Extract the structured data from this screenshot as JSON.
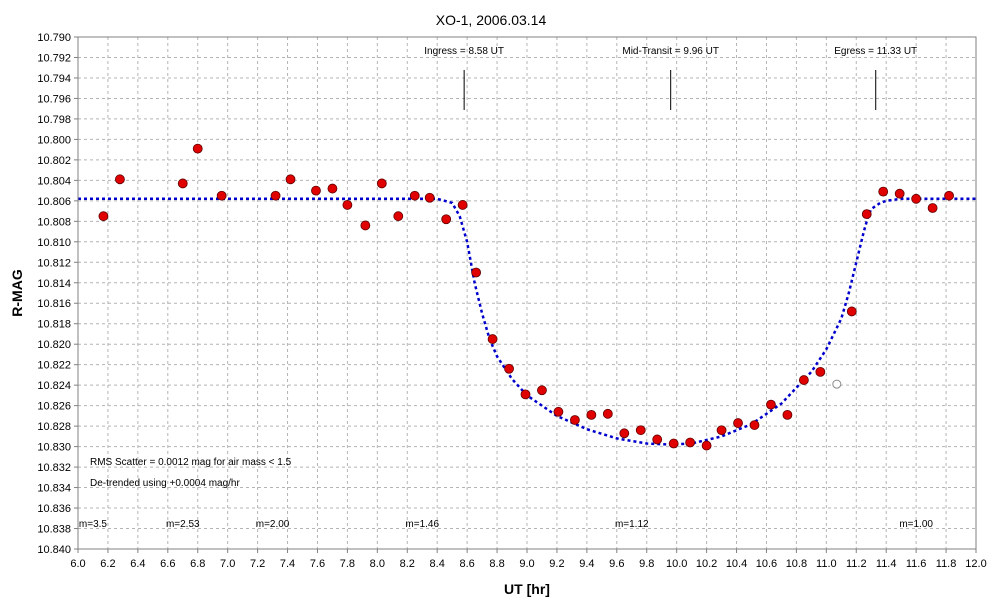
{
  "chart_data": {
    "type": "scatter",
    "title": "XO-1, 2006.03.14",
    "xlabel": "UT [hr]",
    "ylabel": "R-MAG",
    "xlim": [
      6.0,
      12.0
    ],
    "ylim": [
      10.79,
      10.84
    ],
    "y_inverted": true,
    "grid": true,
    "x_ticks": [
      "6.0",
      "6.2",
      "6.4",
      "6.6",
      "6.8",
      "7.0",
      "7.2",
      "7.4",
      "7.6",
      "7.8",
      "8.0",
      "8.2",
      "8.4",
      "8.6",
      "8.8",
      "9.0",
      "9.2",
      "9.4",
      "9.6",
      "9.8",
      "10.0",
      "10.2",
      "10.4",
      "10.6",
      "10.8",
      "11.0",
      "11.2",
      "11.4",
      "11.6",
      "11.8",
      "12.0"
    ],
    "y_ticks": [
      "10.790",
      "10.792",
      "10.794",
      "10.796",
      "10.798",
      "10.800",
      "10.802",
      "10.804",
      "10.806",
      "10.808",
      "10.810",
      "10.812",
      "10.814",
      "10.816",
      "10.818",
      "10.820",
      "10.822",
      "10.824",
      "10.826",
      "10.828",
      "10.830",
      "10.832",
      "10.834",
      "10.836",
      "10.838",
      "10.840"
    ],
    "series": [
      {
        "color": "#e00000",
        "marker": "filled-circle",
        "x": [
          6.17,
          6.28,
          6.7,
          6.8,
          6.96,
          7.32,
          7.42,
          7.59,
          7.7,
          7.8,
          7.92,
          8.03,
          8.14,
          8.25,
          8.35,
          8.46,
          8.57,
          8.66,
          8.77,
          8.88,
          8.99,
          9.1,
          9.21,
          9.32,
          9.43,
          9.54,
          9.65,
          9.76,
          9.87,
          9.98,
          10.09,
          10.2,
          10.3,
          10.41,
          10.52,
          10.63,
          10.74,
          10.85,
          10.96,
          11.17,
          11.27,
          11.38,
          11.49,
          11.6,
          11.71,
          11.82
        ],
        "y": [
          10.8075,
          10.8039,
          10.8043,
          10.8009,
          10.8055,
          10.8055,
          10.8039,
          10.805,
          10.8048,
          10.8064,
          10.8084,
          10.8043,
          10.8075,
          10.8055,
          10.8057,
          10.8078,
          10.8064,
          10.813,
          10.8195,
          10.8224,
          10.8249,
          10.8245,
          10.8266,
          10.8274,
          10.8269,
          10.8268,
          10.8287,
          10.8284,
          10.8293,
          10.8297,
          10.8296,
          10.8299,
          10.8284,
          10.8277,
          10.8279,
          10.8259,
          10.8269,
          10.8235,
          10.8227,
          10.8168,
          10.8073,
          10.8051,
          10.8053,
          10.8058,
          10.8067,
          10.8055
        ]
      },
      {
        "color": "#888888",
        "marker": "open-circle",
        "x": [
          11.07
        ],
        "y": [
          10.8239
        ]
      },
      {
        "color": "#0000cc",
        "style": "dotted-line",
        "x": [
          6.0,
          8.4,
          8.5,
          8.55,
          8.6,
          8.65,
          8.7,
          8.75,
          8.8,
          8.9,
          9.0,
          9.2,
          9.4,
          9.6,
          9.8,
          9.96,
          10.1,
          10.3,
          10.5,
          10.7,
          10.9,
          11.0,
          11.1,
          11.15,
          11.2,
          11.25,
          11.28,
          11.3,
          11.33,
          11.36,
          11.4,
          11.5,
          12.0
        ],
        "y": [
          10.8058,
          10.8058,
          10.8062,
          10.8075,
          10.81,
          10.814,
          10.817,
          10.8195,
          10.8212,
          10.8234,
          10.825,
          10.827,
          10.8283,
          10.8292,
          10.8297,
          10.8298,
          10.8297,
          10.829,
          10.8278,
          10.8258,
          10.8227,
          10.8205,
          10.8175,
          10.815,
          10.812,
          10.809,
          10.8075,
          10.8068,
          10.8065,
          10.8062,
          10.806,
          10.8058,
          10.8058
        ]
      }
    ],
    "transit_markers": [
      {
        "label": "Ingress = 8.58 UT",
        "x": 8.58
      },
      {
        "label": "Mid-Transit = 9.96 UT",
        "x": 9.96
      },
      {
        "label": "Egress = 11.33 UT",
        "x": 11.33
      }
    ],
    "notes": [
      "RMS Scatter = 0.0012 mag for air mass < 1.5",
      "De-trended using +0.0004 mag/hr"
    ],
    "airmass_labels": [
      {
        "label": "m=3.5",
        "x": 6.1
      },
      {
        "label": "m=2.53",
        "x": 6.7
      },
      {
        "label": "m=2.00",
        "x": 7.3
      },
      {
        "label": "m=1.46",
        "x": 8.3
      },
      {
        "label": "m=1.12",
        "x": 9.7
      },
      {
        "label": "m=1.00",
        "x": 11.6
      }
    ]
  }
}
